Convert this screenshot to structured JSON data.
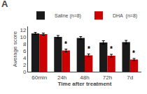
{
  "chart_data": {
    "type": "bar",
    "title": "A",
    "categories": [
      "60min",
      "24h",
      "48h",
      "72h",
      "7d"
    ],
    "series": [
      {
        "name": "Saline (n=8)",
        "color": "#1a1a1a",
        "values": [
          11.0,
          10.0,
          9.7,
          8.4,
          8.5
        ],
        "errors": [
          0.3,
          0.4,
          0.4,
          0.5,
          0.5
        ]
      },
      {
        "name": "DHA  (n=8)",
        "color": "#cc0000",
        "values": [
          10.8,
          6.1,
          4.7,
          4.6,
          3.5
        ],
        "errors": [
          0.3,
          0.4,
          0.4,
          0.4,
          0.3
        ]
      }
    ],
    "xlabel": "Time after treatment",
    "ylabel": "Average score",
    "ylim": [
      0,
      13
    ],
    "yticks": [
      0,
      2,
      4,
      6,
      8,
      10,
      12
    ],
    "legend": "upper right",
    "grid": false,
    "annotations": [
      {
        "text": "*",
        "category": "24h",
        "series": "DHA  (n=8)"
      },
      {
        "text": "*",
        "category": "48h",
        "series": "DHA  (n=8)"
      },
      {
        "text": "*",
        "category": "72h",
        "series": "DHA  (n=8)"
      },
      {
        "text": "*",
        "category": "7d",
        "series": "DHA  (n=8)"
      }
    ]
  }
}
